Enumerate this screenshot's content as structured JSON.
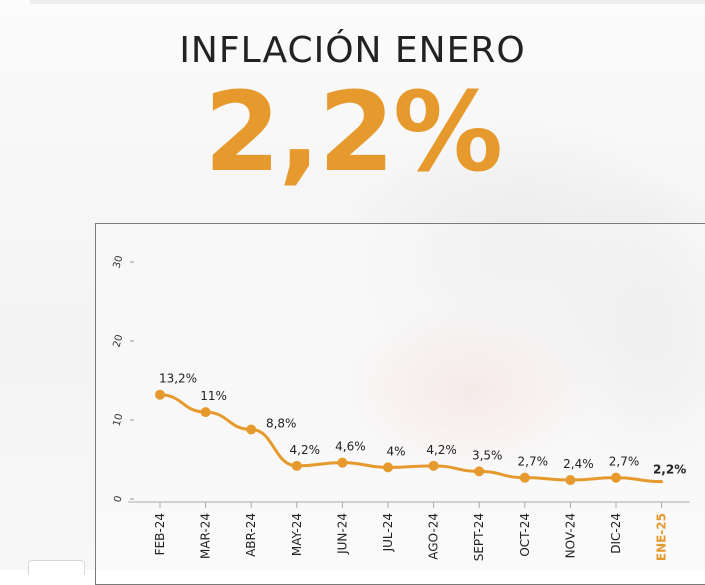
{
  "header": {
    "title": "INFLACIÓN ENERO",
    "value": "2,2%"
  },
  "colors": {
    "accent": "#e69a2e",
    "text": "#222222"
  },
  "chart_data": {
    "type": "line",
    "categories": [
      "FEB-24",
      "MAR-24",
      "ABR-24",
      "MAY-24",
      "JUN-24",
      "JUL-24",
      "AGO-24",
      "SEPT-24",
      "OCT-24",
      "NOV-24",
      "DIC-24",
      "ENE-25"
    ],
    "values": [
      13.2,
      11,
      8.8,
      4.2,
      4.6,
      4,
      4.2,
      3.5,
      2.7,
      2.4,
      2.7,
      2.2
    ],
    "labels": [
      "13,2%",
      "11%",
      "8,8%",
      "4,2%",
      "4,6%",
      "4%",
      "4,2%",
      "3,5%",
      "2,7%",
      "2,4%",
      "2,7%",
      "2,2%"
    ],
    "yticks": [
      0,
      10,
      20,
      30
    ],
    "ylim": [
      0,
      30
    ],
    "title": "",
    "xlabel": "",
    "ylabel": "",
    "grid": false,
    "highlight_last": true
  }
}
